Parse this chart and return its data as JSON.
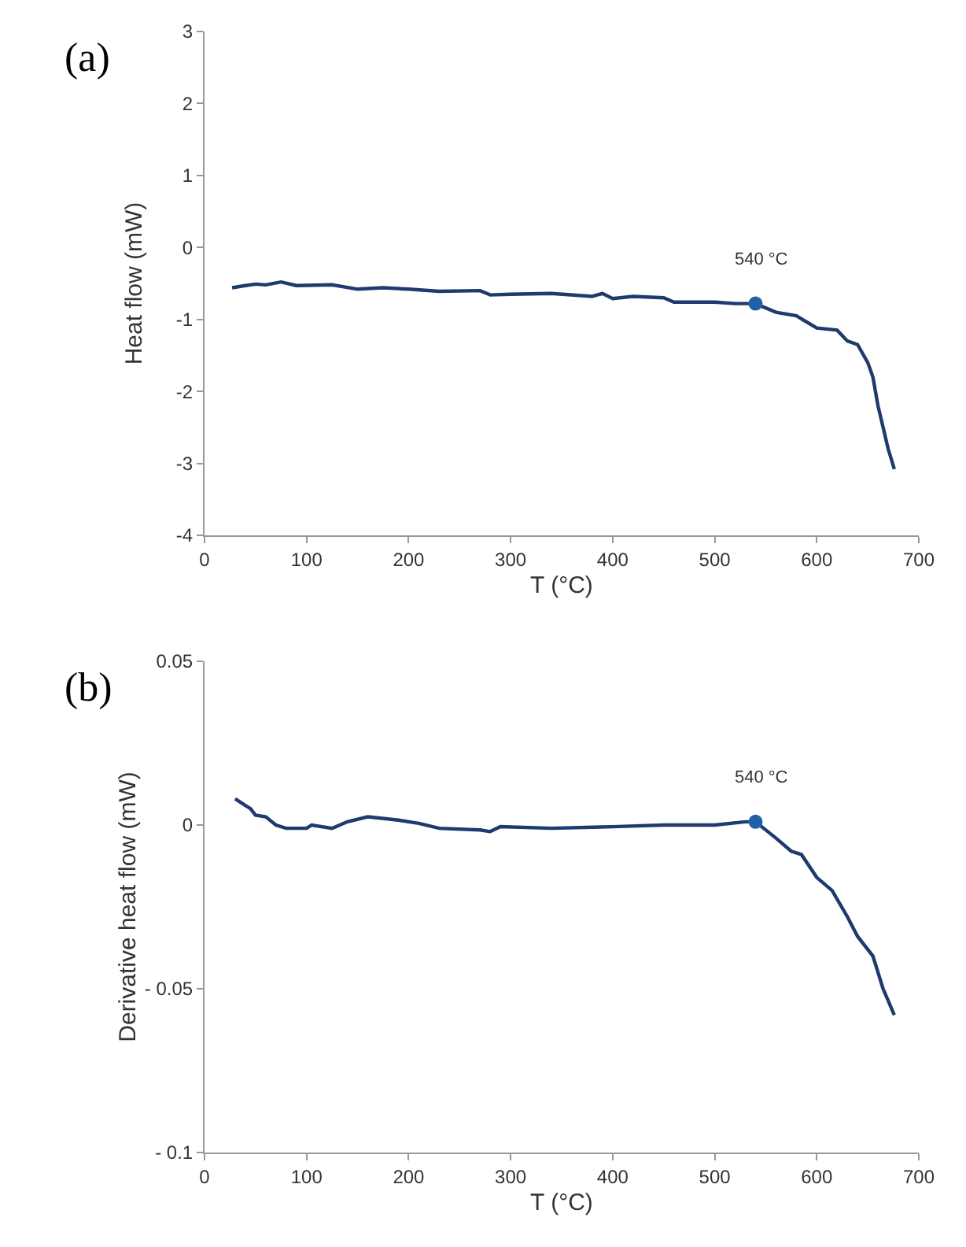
{
  "chart_data": [
    {
      "type": "line",
      "xlabel": "T (°C)",
      "ylabel": "Heat flow (mW)",
      "xlim": [
        0,
        700
      ],
      "xticks": [
        0,
        100,
        200,
        300,
        400,
        500,
        600,
        700
      ],
      "ylim": [
        -4,
        3
      ],
      "yticks": [
        -4,
        -3,
        -2,
        -1,
        0,
        1,
        2,
        3
      ],
      "annotations": [
        "(a)",
        {
          "text": "540 °C",
          "x": 540,
          "y": -0.78
        }
      ],
      "series": [
        {
          "type": "line",
          "color": "#1f3a6e",
          "marker": "none",
          "x": [
            27,
            40,
            50,
            60,
            75,
            90,
            125,
            150,
            175,
            200,
            230,
            270,
            280,
            300,
            340,
            380,
            390,
            400,
            420,
            450,
            460,
            500,
            520,
            540,
            560,
            580,
            600,
            620,
            630,
            640,
            650,
            655,
            660,
            665,
            670,
            676
          ],
          "values": [
            -0.56,
            -0.53,
            -0.51,
            -0.52,
            -0.48,
            -0.53,
            -0.52,
            -0.58,
            -0.56,
            -0.58,
            -0.61,
            -0.6,
            -0.66,
            -0.65,
            -0.64,
            -0.68,
            -0.64,
            -0.71,
            -0.68,
            -0.7,
            -0.76,
            -0.76,
            -0.78,
            -0.78,
            -0.9,
            -0.95,
            -1.12,
            -1.15,
            -1.3,
            -1.35,
            -1.6,
            -1.8,
            -2.2,
            -2.5,
            -2.8,
            -3.08
          ]
        },
        {
          "type": "scatter",
          "color": "#2060a8",
          "marker": "circle",
          "x": [
            540
          ],
          "values": [
            -0.78
          ]
        }
      ]
    },
    {
      "type": "line",
      "xlabel": "T (°C)",
      "ylabel": "Derivative heat flow (mW)",
      "xlim": [
        0,
        700
      ],
      "xticks": [
        0,
        100,
        200,
        300,
        400,
        500,
        600,
        700
      ],
      "ylim": [
        -0.1,
        0.05
      ],
      "yticks": [
        {
          "value": -0.1,
          "label": "- 0.1"
        },
        {
          "value": -0.05,
          "label": "- 0.05"
        },
        0,
        0.05
      ],
      "annotations": [
        "(b)",
        {
          "text": "540 °C",
          "x": 540,
          "y": 0.001
        }
      ],
      "series": [
        {
          "type": "line",
          "color": "#1f3a6e",
          "marker": "none",
          "x": [
            30,
            40,
            45,
            50,
            60,
            70,
            80,
            100,
            105,
            125,
            140,
            160,
            190,
            210,
            230,
            270,
            280,
            290,
            340,
            400,
            450,
            500,
            530,
            540,
            560,
            575,
            585,
            600,
            615,
            630,
            640,
            655,
            665,
            676
          ],
          "values": [
            0.008,
            0.006,
            0.005,
            0.003,
            0.0025,
            0.0,
            -0.001,
            -0.001,
            0.0,
            -0.001,
            0.001,
            0.0025,
            0.0015,
            0.0005,
            -0.001,
            -0.0015,
            -0.002,
            -0.0005,
            -0.001,
            -0.0005,
            0.0,
            0.0,
            0.001,
            0.001,
            -0.004,
            -0.008,
            -0.009,
            -0.016,
            -0.02,
            -0.028,
            -0.034,
            -0.04,
            -0.05,
            -0.058
          ]
        },
        {
          "type": "scatter",
          "color": "#2060a8",
          "marker": "circle",
          "x": [
            540
          ],
          "values": [
            0.001
          ]
        }
      ]
    }
  ]
}
